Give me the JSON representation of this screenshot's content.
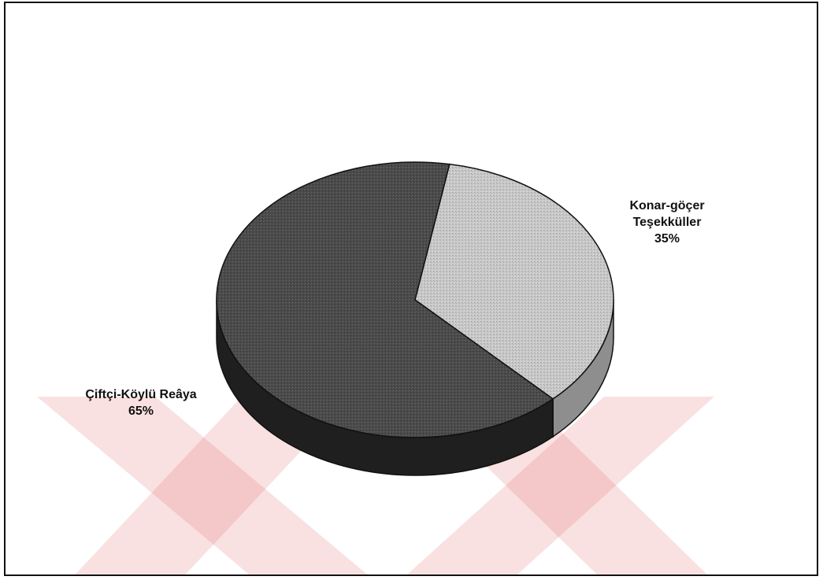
{
  "chart_data": {
    "type": "pie",
    "slices": [
      {
        "label": [
          "Konar-göçer",
          "Teşekküller"
        ],
        "value": 35,
        "percent_label": "35%",
        "color": "#c9c9c9",
        "side_color": "#8e8e8e"
      },
      {
        "label": [
          "Çiftçi-Köylü Reâya"
        ],
        "value": 65,
        "percent_label": "65%",
        "color": "#4a4a4a",
        "side_color": "#1f1f1f"
      }
    ],
    "three_d": true,
    "legend": "none"
  },
  "watermark": {
    "color": "#e05a5a"
  }
}
